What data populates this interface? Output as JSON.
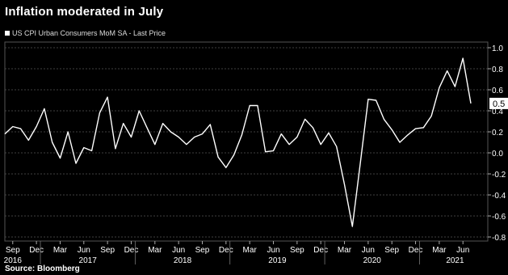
{
  "title": "Inflation moderated in July",
  "legend_label": "US CPI Urban Consumers MoM SA - Last Price",
  "source": "Source: Bloomberg",
  "last_price_label": "0.5",
  "colors": {
    "background": "#000000",
    "line": "#ffffff",
    "grid": "#555555",
    "badge": "#ffffff"
  },
  "chart_data": {
    "type": "line",
    "title": "Inflation moderated in July",
    "ylim": [
      -0.8,
      1.0
    ],
    "yticks": [
      1.0,
      0.8,
      0.6,
      0.4,
      0.2,
      0.0,
      -0.2,
      -0.4,
      -0.6,
      -0.8
    ],
    "ytick_labels": [
      "1.0",
      "0.8",
      "0.6",
      "0.4",
      "0.2",
      "0.0",
      "-0.2",
      "-0.4",
      "-0.6",
      "-0.8"
    ],
    "x_month_labels": [
      "Sep",
      "Dec",
      "Mar",
      "Jun",
      "Sep",
      "Dec",
      "Mar",
      "Jun",
      "Sep",
      "Dec",
      "Mar",
      "Jun",
      "Sep",
      "Dec",
      "Mar",
      "Jun",
      "Sep",
      "Dec",
      "Mar",
      "Jun"
    ],
    "x_year_labels": [
      "2016",
      "2017",
      "2018",
      "2019",
      "2020",
      "2021"
    ],
    "grid": true,
    "series": [
      {
        "name": "US CPI Urban Consumers MoM SA - Last Price",
        "x": [
          "2016-08",
          "2016-09",
          "2016-10",
          "2016-11",
          "2016-12",
          "2017-01",
          "2017-02",
          "2017-03",
          "2017-04",
          "2017-05",
          "2017-06",
          "2017-07",
          "2017-08",
          "2017-09",
          "2017-10",
          "2017-11",
          "2017-12",
          "2018-01",
          "2018-02",
          "2018-03",
          "2018-04",
          "2018-05",
          "2018-06",
          "2018-07",
          "2018-08",
          "2018-09",
          "2018-10",
          "2018-11",
          "2018-12",
          "2019-01",
          "2019-02",
          "2019-03",
          "2019-04",
          "2019-05",
          "2019-06",
          "2019-07",
          "2019-08",
          "2019-09",
          "2019-10",
          "2019-11",
          "2019-12",
          "2020-01",
          "2020-02",
          "2020-03",
          "2020-04",
          "2020-05",
          "2020-06",
          "2020-07",
          "2020-08",
          "2020-09",
          "2020-10",
          "2020-11",
          "2020-12",
          "2021-01",
          "2021-02",
          "2021-03",
          "2021-04",
          "2021-05",
          "2021-06",
          "2021-07"
        ],
        "values": [
          0.18,
          0.25,
          0.23,
          0.12,
          0.25,
          0.42,
          0.1,
          -0.05,
          0.2,
          -0.1,
          0.05,
          0.02,
          0.38,
          0.53,
          0.04,
          0.28,
          0.15,
          0.4,
          0.24,
          0.08,
          0.28,
          0.2,
          0.15,
          0.08,
          0.15,
          0.18,
          0.27,
          -0.04,
          -0.14,
          -0.02,
          0.17,
          0.45,
          0.45,
          0.01,
          0.02,
          0.18,
          0.08,
          0.15,
          0.32,
          0.24,
          0.08,
          0.19,
          0.06,
          -0.3,
          -0.7,
          -0.1,
          0.51,
          0.5,
          0.32,
          0.22,
          0.1,
          0.17,
          0.23,
          0.24,
          0.35,
          0.62,
          0.78,
          0.63,
          0.9,
          0.47
        ]
      }
    ]
  }
}
